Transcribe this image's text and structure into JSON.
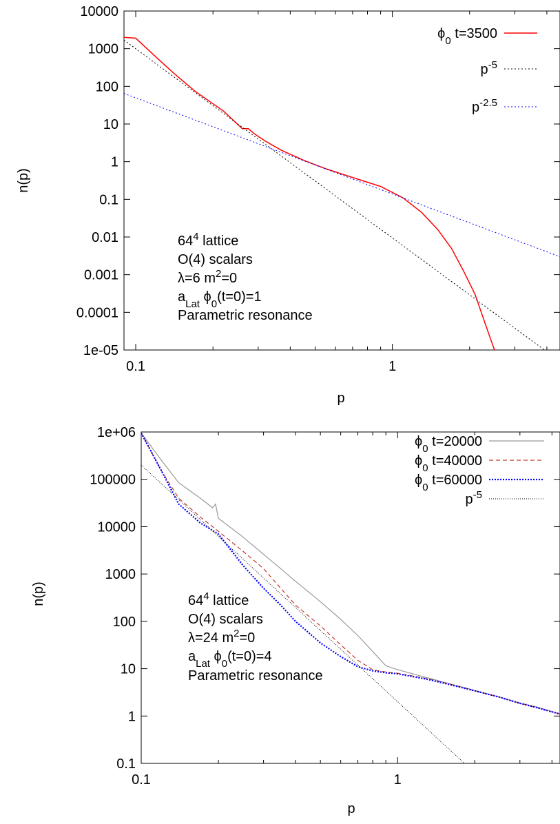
{
  "chart_data": [
    {
      "type": "line",
      "xscale": "log",
      "yscale": "log",
      "xlabel": "p",
      "ylabel": "n(p)",
      "xlim": [
        0.09,
        4.5
      ],
      "ylim": [
        1e-05,
        10000
      ],
      "legend_position": "top-right",
      "grid": false,
      "x_ticks": [
        {
          "value": 0.1,
          "label": "0.1"
        },
        {
          "value": 1,
          "label": "1"
        }
      ],
      "y_ticks": [
        {
          "value": 10000,
          "label": "10000"
        },
        {
          "value": 1000,
          "label": "1000"
        },
        {
          "value": 100,
          "label": "100"
        },
        {
          "value": 10,
          "label": "10"
        },
        {
          "value": 1,
          "label": "1"
        },
        {
          "value": 0.1,
          "label": "0.1"
        },
        {
          "value": 0.01,
          "label": "0.01"
        },
        {
          "value": 0.001,
          "label": "0.001"
        },
        {
          "value": 0.0001,
          "label": "0.0001"
        },
        {
          "value": 1e-05,
          "label": "1e-05"
        }
      ],
      "annotation": {
        "lattice": "64",
        "lattice_exp": "4",
        "lattice_rest": " lattice",
        "scalars": "O(4) scalars",
        "params_a": "λ=6  m",
        "params_exp": "2",
        "params_b": "=0",
        "init_a": "a",
        "init_sub": "Lat",
        "init_b": " ϕ",
        "init_sub2": "0",
        "init_c": "(t=0)=1",
        "mechanism": "Parametric resonance"
      },
      "series": [
        {
          "legend_main": "ϕ",
          "legend_sub": "0",
          "legend_rest": " t=3500",
          "legend_sup": "",
          "color": "#ff0000",
          "dash": "",
          "width": 1.5,
          "x": [
            0.09,
            0.1,
            0.12,
            0.14,
            0.17,
            0.22,
            0.26,
            0.275,
            0.29,
            0.32,
            0.37,
            0.45,
            0.55,
            0.7,
            0.9,
            1.1,
            1.3,
            1.5,
            1.7,
            1.9,
            2.1,
            2.3,
            2.5
          ],
          "y": [
            2000,
            1900,
            600,
            230,
            75,
            22,
            7.5,
            7.5,
            5.5,
            3.5,
            2.0,
            1.1,
            0.65,
            0.38,
            0.22,
            0.11,
            0.045,
            0.016,
            0.005,
            0.0012,
            0.0003,
            5e-05,
            1e-05
          ]
        },
        {
          "legend_main": "p",
          "legend_sub": "",
          "legend_rest": "",
          "legend_sup": "-5",
          "color": "#000000",
          "dash": "2,3",
          "width": 1,
          "x": [
            0.09,
            4.3
          ],
          "y": [
            1694,
            6.25e-06
          ]
        },
        {
          "legend_main": "p",
          "legend_sub": "",
          "legend_rest": "",
          "legend_sup": "-2.5",
          "color": "#0000ff",
          "dash": "2,3",
          "width": 1,
          "x": [
            0.09,
            4.5
          ],
          "y": [
            65,
            0.003
          ]
        }
      ]
    },
    {
      "type": "line",
      "xscale": "log",
      "yscale": "log",
      "xlabel": "p",
      "ylabel": "n(p)",
      "xlim": [
        0.1,
        4.3
      ],
      "ylim": [
        0.1,
        1000000
      ],
      "legend_position": "top-right",
      "grid": false,
      "x_ticks": [
        {
          "value": 0.1,
          "label": "0.1"
        },
        {
          "value": 1,
          "label": "1"
        }
      ],
      "y_ticks": [
        {
          "value": 1000000,
          "label": "1e+06"
        },
        {
          "value": 100000,
          "label": "100000"
        },
        {
          "value": 10000,
          "label": "10000"
        },
        {
          "value": 1000,
          "label": "1000"
        },
        {
          "value": 100,
          "label": "100"
        },
        {
          "value": 10,
          "label": "10"
        },
        {
          "value": 1,
          "label": "1"
        },
        {
          "value": 0.1,
          "label": "0.1"
        }
      ],
      "annotation": {
        "lattice": "64",
        "lattice_exp": "4",
        "lattice_rest": " lattice",
        "scalars": " O(4) scalars",
        "params_a": "λ=24  m",
        "params_exp": "2",
        "params_b": "=0",
        "init_a": "a",
        "init_sub": "Lat",
        "init_b": " ϕ",
        "init_sub2": "0",
        "init_c": "(t=0)=4",
        "mechanism": "Parametric resonance"
      },
      "series": [
        {
          "legend_main": "ϕ",
          "legend_sub": "0",
          "legend_rest": " t=20000",
          "legend_sup": "",
          "color": "#999999",
          "dash": "",
          "width": 1.2,
          "x": [
            0.1,
            0.12,
            0.14,
            0.17,
            0.19,
            0.195,
            0.2,
            0.25,
            0.3,
            0.35,
            0.4,
            0.5,
            0.6,
            0.7,
            0.8,
            0.9,
            1.0,
            1.3,
            1.6,
            2.0,
            2.5,
            3.0,
            3.5,
            4.3
          ],
          "y": [
            950000,
            250000,
            85000,
            40000,
            25000,
            30000,
            15000,
            6000,
            2600,
            1300,
            700,
            260,
            110,
            50,
            23,
            11.5,
            9.5,
            6.5,
            4.8,
            3.5,
            2.5,
            1.9,
            1.55,
            1.1
          ]
        },
        {
          "legend_main": "ϕ",
          "legend_sub": "0",
          "legend_rest": " t=40000",
          "legend_sup": "",
          "color": "#c0392b",
          "dash": "6,4",
          "width": 1.2,
          "x": [
            0.1,
            0.12,
            0.14,
            0.17,
            0.2,
            0.25,
            0.3,
            0.35,
            0.4,
            0.5,
            0.6,
            0.7,
            0.8,
            0.9,
            1.0,
            1.3,
            1.6,
            2.0,
            2.5,
            3.0,
            3.5,
            4.3
          ],
          "y": [
            950000,
            150000,
            40000,
            16000,
            8000,
            3000,
            1300,
            500,
            220,
            80,
            32,
            15,
            9.5,
            8.5,
            8.0,
            6.2,
            4.7,
            3.4,
            2.5,
            1.85,
            1.5,
            1.1
          ]
        },
        {
          "legend_main": "ϕ",
          "legend_sub": "0",
          "legend_rest": " t=60000",
          "legend_sup": "",
          "color": "#0000ff",
          "dash": "2,2",
          "width": 2.2,
          "x": [
            0.1,
            0.12,
            0.14,
            0.17,
            0.2,
            0.25,
            0.3,
            0.35,
            0.4,
            0.5,
            0.6,
            0.7,
            0.8,
            0.9,
            1.0,
            1.3,
            1.6,
            2.0,
            2.5,
            3.0,
            3.5,
            4.3
          ],
          "y": [
            950000,
            150000,
            30000,
            12000,
            7000,
            1500,
            500,
            220,
            100,
            35,
            18,
            11,
            9.0,
            8.2,
            7.8,
            6.0,
            4.6,
            3.4,
            2.5,
            1.85,
            1.5,
            1.1
          ]
        },
        {
          "legend_main": "p",
          "legend_sub": "",
          "legend_rest": "",
          "legend_sup": "-5",
          "color": "#000000",
          "dash": "1,2",
          "width": 1,
          "x": [
            0.1,
            1.85
          ],
          "y": [
            200000,
            0.0927
          ]
        }
      ]
    }
  ]
}
